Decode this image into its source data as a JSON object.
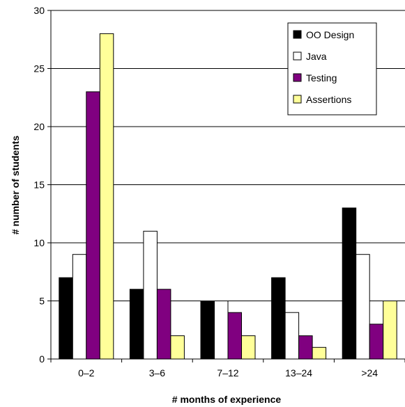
{
  "chart_data": {
    "type": "bar",
    "categories": [
      "0–2",
      "3–6",
      "7–12",
      "13–24",
      ">24"
    ],
    "series": [
      {
        "name": "OO Design",
        "values": [
          7,
          6,
          5,
          7,
          13
        ],
        "color": "#000000"
      },
      {
        "name": "Java",
        "values": [
          9,
          11,
          5,
          4,
          9
        ],
        "color": "#ffffff"
      },
      {
        "name": "Testing",
        "values": [
          23,
          6,
          4,
          2,
          3
        ],
        "color": "#800080"
      },
      {
        "name": "Assertions",
        "values": [
          28,
          2,
          2,
          1,
          5
        ],
        "color": "#ffff99"
      }
    ],
    "xlabel": "# months of experience",
    "ylabel": "# number of students",
    "ylim": [
      0,
      30
    ],
    "yticks": [
      0,
      5,
      10,
      15,
      20,
      25,
      30
    ],
    "grid": true,
    "legend_position": "top-right"
  }
}
